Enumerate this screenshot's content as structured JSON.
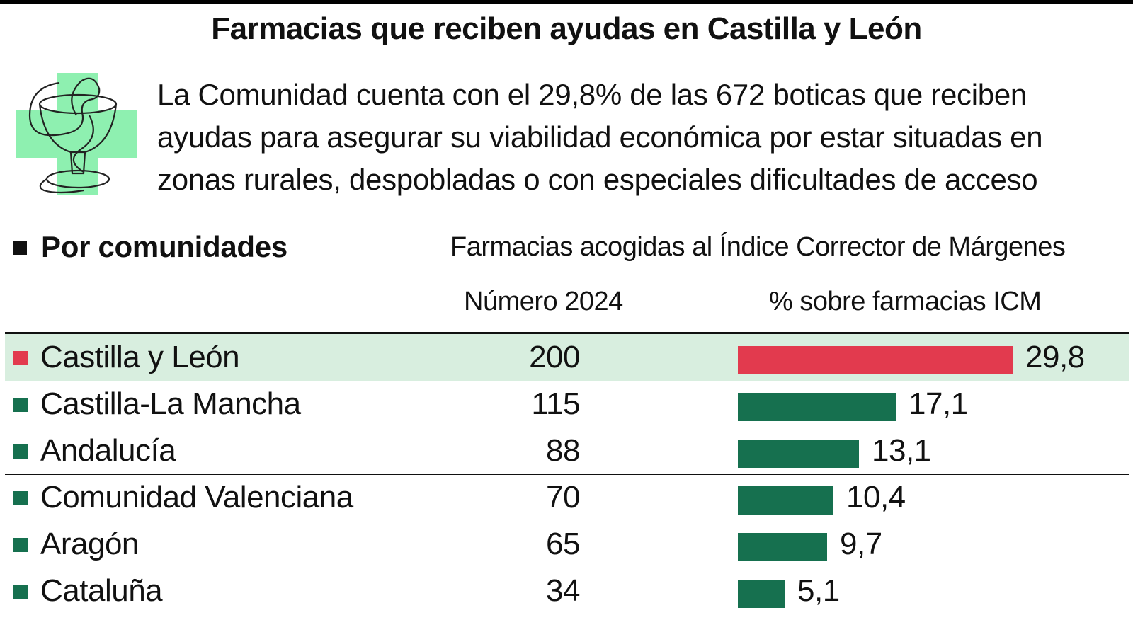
{
  "header": {
    "title": "Farmacias que reciben ayudas en Castilla y León",
    "intro": "La Comunidad cuenta con el 29,8% de las 672 boticas que reciben ayudas para asegurar su viabilidad económica por estar situadas en zonas rurales, despobladas o con especiales dificultades de acceso",
    "logo_icon": "pharmacy-cross-bowl-snake-icon"
  },
  "section": {
    "title": "Por comunidades",
    "subtitle": "Farmacias acogidas al Índice Corrector de Márgenes",
    "col_number": "Número 2024",
    "col_pct": "% sobre farmacias ICM"
  },
  "colors": {
    "highlight_bar": "#e23a4e",
    "bar": "#16704f",
    "highlight_row": "#d8eedf",
    "logo_cross": "#8ef0b0"
  },
  "chart_data": {
    "type": "bar",
    "orientation": "horizontal",
    "title": "Farmacias que reciben ayudas en Castilla y León",
    "subtitle": "Farmacias acogidas al Índice Corrector de Márgenes",
    "columns": [
      "Número 2024",
      "% sobre farmacias ICM"
    ],
    "xlim": [
      0,
      29.8
    ],
    "rows": [
      {
        "name": "Castilla y León",
        "number": "200",
        "pct": 29.8,
        "pct_label": "29,8",
        "highlight": true
      },
      {
        "name": "Castilla-La Mancha",
        "number": "115",
        "pct": 17.1,
        "pct_label": "17,1",
        "highlight": false
      },
      {
        "name": "Andalucía",
        "number": "88",
        "pct": 13.1,
        "pct_label": "13,1",
        "highlight": false
      },
      {
        "name": "Comunidad Valenciana",
        "number": "70",
        "pct": 10.4,
        "pct_label": "10,4",
        "highlight": false
      },
      {
        "name": "Aragón",
        "number": "65",
        "pct": 9.7,
        "pct_label": "9,7",
        "highlight": false
      },
      {
        "name": "Cataluña",
        "number": "34",
        "pct": 5.1,
        "pct_label": "5,1",
        "highlight": false
      }
    ]
  }
}
